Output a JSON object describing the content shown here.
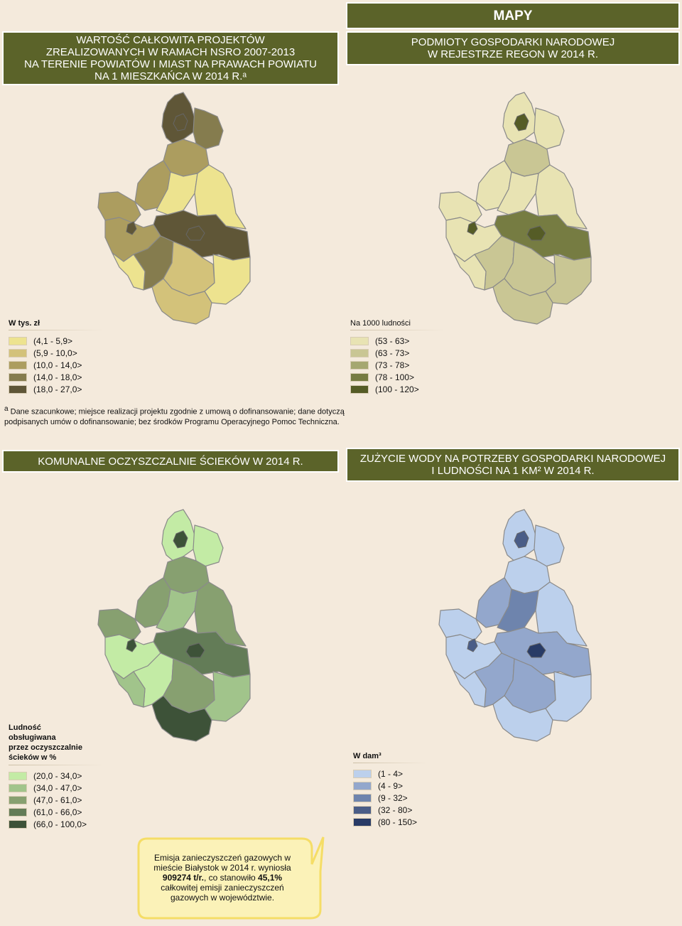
{
  "header": {
    "title": "MAPY"
  },
  "sections": {
    "projects": {
      "title_lines": [
        "WARTOŚĆ CAŁKOWITA PROJEKTÓW",
        "ZREALIZOWANYCH W RAMACH NSRO 2007-2013",
        "NA TERENIE POWIATÓW I MIAST NA PRAWACH POWIATU",
        "NA 1 MIESZKAŃCA W 2014 R.ᵃ"
      ],
      "legend_title": "W tys. zł",
      "legend": [
        {
          "label": "(4,1 - 5,9>",
          "color": "#ede38f"
        },
        {
          "label": "(5,9 - 10,0>",
          "color": "#d3c27a"
        },
        {
          "label": "(10,0 - 14,0>",
          "color": "#ac9d5f"
        },
        {
          "label": "(14,0 - 18,0>",
          "color": "#857c4e"
        },
        {
          "label": "(18,0 - 27,0>",
          "color": "#5f5637"
        }
      ]
    },
    "regon": {
      "title_lines": [
        "PODMIOTY GOSPODARKI NARODOWEJ",
        "W REJESTRZE REGON W 2014 R."
      ],
      "legend_title": "Na 1000 ludności",
      "legend": [
        {
          "label": "(53 - 63>",
          "color": "#e8e3b3"
        },
        {
          "label": "(63 - 73>",
          "color": "#c9c694"
        },
        {
          "label": "(73 - 78>",
          "color": "#a5a770"
        },
        {
          "label": "(78 - 100>",
          "color": "#767c42"
        },
        {
          "label": "(100 - 120>",
          "color": "#555c26"
        }
      ]
    },
    "sewage": {
      "title_lines": [
        "KOMUNALNE OCZYSZCZALNIE ŚCIEKÓW W 2014 R."
      ],
      "legend_title_lines": [
        "Ludność",
        "obsługiwana",
        "przez oczyszczalnie",
        "ścieków w %"
      ],
      "legend": [
        {
          "label": "(20,0 - 34,0>",
          "color": "#c3eba5"
        },
        {
          "label": "(34,0 - 47,0>",
          "color": "#a1c48b"
        },
        {
          "label": "(47,0 - 61,0>",
          "color": "#87a070"
        },
        {
          "label": "(61,0 - 66,0>",
          "color": "#637c57"
        },
        {
          "label": "(66,0 - 100,0>",
          "color": "#3d5238"
        }
      ]
    },
    "water": {
      "title_lines": [
        "ZUŻYCIE WODY NA POTRZEBY GOSPODARKI NARODOWEJ",
        "I LUDNOŚCI NA 1 KM² W 2014 R."
      ],
      "legend_title": "W dam³",
      "legend": [
        {
          "label": "(1 - 4>",
          "color": "#bcd0ec"
        },
        {
          "label": "(4 - 9>",
          "color": "#93a7cc"
        },
        {
          "label": "(9 - 32>",
          "color": "#6e84ad"
        },
        {
          "label": "(32 - 80>",
          "color": "#4a5d87"
        },
        {
          "label": "(80 - 150>",
          "color": "#283b66"
        }
      ]
    }
  },
  "footnote": {
    "marker": "a",
    "text": "Dane szacunkowe; miejsce realizacji projektu zgodnie z umową o dofinansowanie; dane dotyczą podpisanych umów o dofinansowanie; bez środków Programu Operacyjnego Pomoc Techniczna."
  },
  "callout": {
    "line1": "Emisja zanieczyszczeń gazowych w mieście Białystok w 2014 r. wyniosła",
    "value": "909274 t/r.",
    "mid": ", co stanowiło",
    "share": "45,1%",
    "line3": "całkowitej emisji zanieczyszczeń gazowych w województwie."
  },
  "maps": {
    "projects": {
      "fills": [
        "#5f5637",
        "#857c4e",
        "#ac9d5f",
        "#ac9d5f",
        "#ac9d5f",
        "#ede38f",
        "#ede38f",
        "#5f5637",
        "#ac9d5f",
        "#857c4e",
        "#d3c27a",
        "#ede38f",
        "#d3c27a",
        "#ede38f"
      ],
      "cities": [
        "#5f5637",
        "#5f5637",
        "#5f5637"
      ]
    },
    "regon": {
      "fills": [
        "#e8e3b3",
        "#e8e3b3",
        "#c9c694",
        "#e8e3b3",
        "#e8e3b3",
        "#e8e3b3",
        "#e8e3b3",
        "#767c42",
        "#e8e3b3",
        "#c9c694",
        "#c9c694",
        "#c9c694",
        "#c9c694",
        "#e8e3b3"
      ],
      "cities": [
        "#555c26",
        "#555c26",
        "#555c26"
      ]
    },
    "sewage": {
      "fills": [
        "#c3eba5",
        "#c3eba5",
        "#87a070",
        "#87a070",
        "#87a070",
        "#a1c48b",
        "#87a070",
        "#637c57",
        "#c3eba5",
        "#c3eba5",
        "#87a070",
        "#a1c48b",
        "#3d5238",
        "#a1c48b"
      ],
      "cities": [
        "#3d5238",
        "#3d5238",
        "#3d5238"
      ]
    },
    "water": {
      "fills": [
        "#bcd0ec",
        "#bcd0ec",
        "#bcd0ec",
        "#93a7cc",
        "#bcd0ec",
        "#6e84ad",
        "#bcd0ec",
        "#93a7cc",
        "#bcd0ec",
        "#93a7cc",
        "#93a7cc",
        "#bcd0ec",
        "#bcd0ec",
        "#bcd0ec"
      ],
      "cities": [
        "#4a5d87",
        "#4a5d87",
        "#283b66"
      ]
    }
  }
}
